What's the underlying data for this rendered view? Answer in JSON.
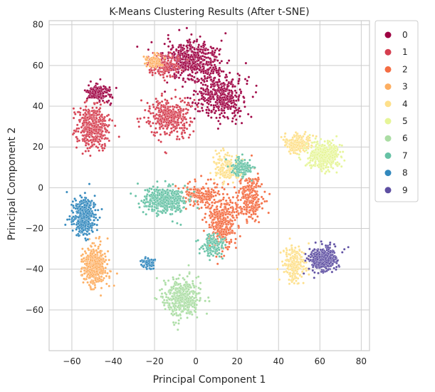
{
  "chart_data": {
    "type": "scatter",
    "title": "K-Means Clustering Results (After t-SNE)",
    "xlabel": "Principal Component 1",
    "ylabel": "Principal Component 2",
    "xlim": [
      -71,
      84
    ],
    "ylim": [
      -80,
      82
    ],
    "xticks": [
      -60,
      -40,
      -20,
      0,
      20,
      40,
      60,
      80
    ],
    "yticks": [
      -60,
      -40,
      -20,
      0,
      20,
      40,
      60,
      80
    ],
    "grid": true,
    "legend_position": "outside-upper-right",
    "palette": [
      "#9e0142",
      "#d53e4f",
      "#f46d43",
      "#fdae61",
      "#fee08b",
      "#e6f598",
      "#abdda4",
      "#66c2a5",
      "#3288bd",
      "#5e4fa2"
    ],
    "series": [
      {
        "name": "0",
        "color": "#9e0142",
        "regions": [
          {
            "cx": -2,
            "cy": 62,
            "sx": 12,
            "sy": 9,
            "w": 1.2
          },
          {
            "cx": 12,
            "cy": 45,
            "sx": 10,
            "sy": 10,
            "w": 1.0
          },
          {
            "cx": -47,
            "cy": 47,
            "sx": 5,
            "sy": 4,
            "w": 0.4
          }
        ]
      },
      {
        "name": "1",
        "color": "#d53e4f",
        "regions": [
          {
            "cx": -50,
            "cy": 30,
            "sx": 7,
            "sy": 10,
            "w": 1.0
          },
          {
            "cx": -13,
            "cy": 35,
            "sx": 9,
            "sy": 8,
            "w": 0.9
          },
          {
            "cx": -15,
            "cy": 60,
            "sx": 6,
            "sy": 5,
            "w": 0.4
          }
        ]
      },
      {
        "name": "2",
        "color": "#f46d43",
        "regions": [
          {
            "cx": 13,
            "cy": -17,
            "sx": 7,
            "sy": 12,
            "w": 0.9
          },
          {
            "cx": 26,
            "cy": -5,
            "sx": 6,
            "sy": 10,
            "w": 0.6
          },
          {
            "cx": 2,
            "cy": -3,
            "sx": 7,
            "sy": 5,
            "w": 0.4
          }
        ]
      },
      {
        "name": "3",
        "color": "#fdae61",
        "regions": [
          {
            "cx": -49,
            "cy": -39,
            "sx": 5,
            "sy": 9,
            "w": 1.0
          },
          {
            "cx": -20,
            "cy": 62,
            "sx": 4,
            "sy": 3,
            "w": 0.2
          }
        ]
      },
      {
        "name": "4",
        "color": "#fee08b",
        "regions": [
          {
            "cx": 49,
            "cy": 22,
            "sx": 6,
            "sy": 4,
            "w": 0.5
          },
          {
            "cx": 48,
            "cy": -38,
            "sx": 5,
            "sy": 8,
            "w": 0.5
          },
          {
            "cx": 15,
            "cy": 10,
            "sx": 6,
            "sy": 7,
            "w": 0.4
          }
        ]
      },
      {
        "name": "5",
        "color": "#e6f598",
        "regions": [
          {
            "cx": 62,
            "cy": 16,
            "sx": 7,
            "sy": 6,
            "w": 1.0
          }
        ]
      },
      {
        "name": "6",
        "color": "#abdda4",
        "regions": [
          {
            "cx": -7,
            "cy": -54,
            "sx": 8,
            "sy": 8,
            "w": 1.0
          }
        ]
      },
      {
        "name": "7",
        "color": "#66c2a5",
        "regions": [
          {
            "cx": -15,
            "cy": -6,
            "sx": 10,
            "sy": 6,
            "w": 1.0
          },
          {
            "cx": 22,
            "cy": 10,
            "sx": 5,
            "sy": 5,
            "w": 0.3
          },
          {
            "cx": 8,
            "cy": -28,
            "sx": 5,
            "sy": 5,
            "w": 0.3
          }
        ]
      },
      {
        "name": "8",
        "color": "#3288bd",
        "regions": [
          {
            "cx": -54,
            "cy": -14,
            "sx": 5,
            "sy": 8,
            "w": 1.0
          },
          {
            "cx": -23,
            "cy": -37,
            "sx": 3,
            "sy": 3,
            "w": 0.15
          }
        ]
      },
      {
        "name": "9",
        "color": "#5e4fa2",
        "regions": [
          {
            "cx": 61,
            "cy": -35,
            "sx": 6,
            "sy": 5,
            "w": 1.0
          }
        ]
      }
    ]
  }
}
